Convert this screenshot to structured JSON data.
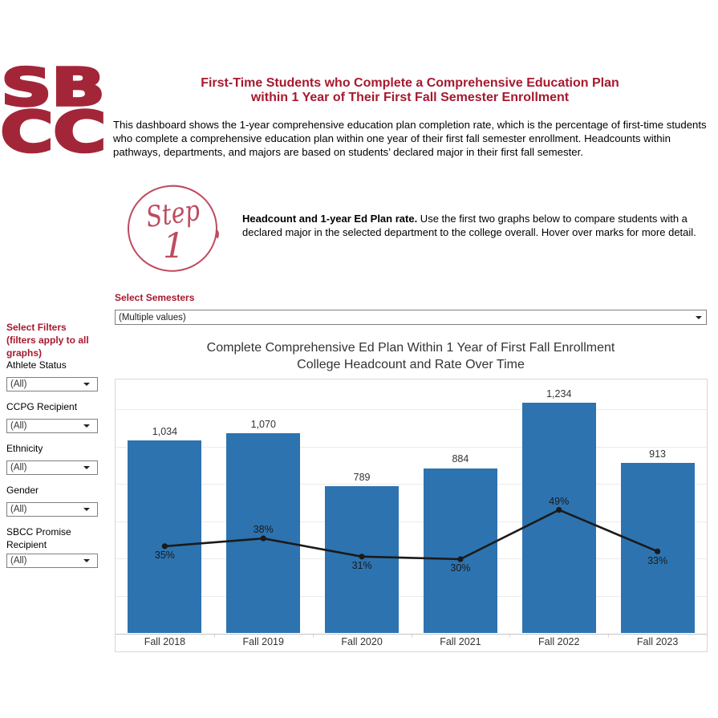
{
  "logo": {
    "line1": "SB",
    "line2": "CC",
    "color": "#A32638"
  },
  "header": {
    "title_line1": "First-Time Students who Complete a Comprehensive Education Plan",
    "title_line2": "within 1 Year of Their First Fall Semester Enrollment",
    "intro_line1": "This dashboard shows the 1-year comprehensive education plan completion rate, which is the percentage of first-time students",
    "intro_line2": "who complete a comprehensive education plan within one year of their first fall semester enrollment. Headcounts within",
    "intro_line3": "pathways, departments, and majors are based on students’ declared major in their first fall semester."
  },
  "step_badge": {
    "word": "Step",
    "number": "1",
    "color": "#BE4B5F"
  },
  "instruction": {
    "bold": "Headcount and 1-year Ed Plan rate.",
    "line1_rest": " Use the first two graphs below to compare students with a",
    "line2": "declared major in the selected department to the college overall. Hover over marks for more detail."
  },
  "semester_filter": {
    "label": "Select Semesters",
    "value": "(Multiple values)"
  },
  "sidebar": {
    "heading": "Select Filters (filters apply to all graphs)",
    "filters": [
      {
        "label": "Athlete Status",
        "value": "(All)"
      },
      {
        "label": "CCPG Recipient",
        "value": "(All)"
      },
      {
        "label": "Ethnicity",
        "value": "(All)"
      },
      {
        "label": "Gender",
        "value": "(All)"
      },
      {
        "label": "SBCC Promise Recipient",
        "value": "(All)"
      }
    ]
  },
  "chart_data": {
    "type": "bar",
    "title_line1": "Complete Comprehensive Ed Plan Within 1 Year of First Fall Enrollment",
    "title_line2": "College Headcount and Rate Over Time",
    "categories": [
      "Fall 2018",
      "Fall 2019",
      "Fall 2020",
      "Fall 2021",
      "Fall 2022",
      "Fall 2023"
    ],
    "series": [
      {
        "name": "Headcount",
        "type": "bar",
        "values": [
          1034,
          1070,
          789,
          884,
          1234,
          913
        ],
        "labels": [
          "1,034",
          "1,070",
          "789",
          "884",
          "1,234",
          "913"
        ],
        "color": "#2D73B0"
      },
      {
        "name": "1-Year Ed Plan Rate",
        "type": "line",
        "values": [
          35,
          38,
          31,
          30,
          49,
          33
        ],
        "labels": [
          "35%",
          "38%",
          "31%",
          "30%",
          "49%",
          "33%"
        ],
        "label_side": [
          "below",
          "above",
          "below",
          "below",
          "above",
          "below"
        ],
        "color": "#1a1a1a"
      }
    ],
    "ylim": [
      0,
      1360
    ],
    "y2lim": [
      0,
      99.3
    ],
    "grid_step": 200,
    "grid": true,
    "legend": false
  }
}
